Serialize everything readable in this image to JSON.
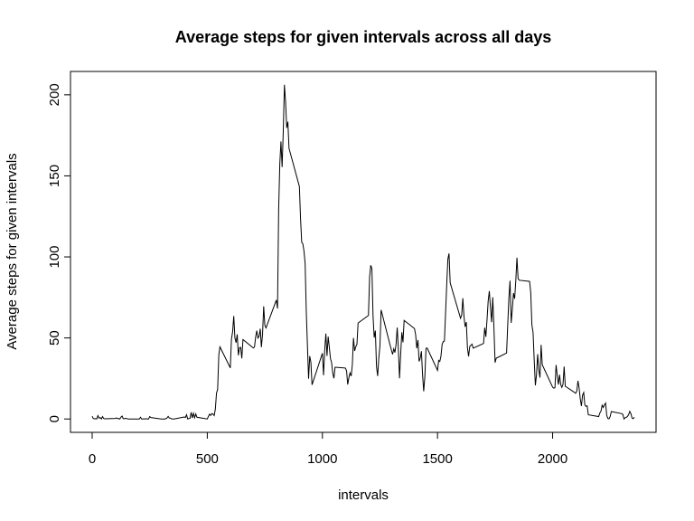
{
  "chart_data": {
    "type": "line",
    "title": "Average steps for given intervals across all days",
    "xlabel": "intervals",
    "ylabel": "Average steps for given intervals",
    "x": [
      0,
      5,
      10,
      15,
      20,
      25,
      30,
      35,
      40,
      45,
      50,
      55,
      100,
      105,
      110,
      115,
      120,
      125,
      130,
      135,
      140,
      145,
      150,
      155,
      200,
      205,
      210,
      215,
      220,
      225,
      230,
      235,
      240,
      245,
      250,
      255,
      300,
      305,
      310,
      315,
      320,
      325,
      330,
      335,
      340,
      345,
      350,
      355,
      400,
      405,
      410,
      415,
      420,
      425,
      430,
      435,
      440,
      445,
      450,
      455,
      500,
      505,
      510,
      515,
      520,
      525,
      530,
      535,
      540,
      545,
      550,
      555,
      600,
      605,
      610,
      615,
      620,
      625,
      630,
      635,
      640,
      645,
      650,
      655,
      700,
      705,
      710,
      715,
      720,
      725,
      730,
      735,
      740,
      745,
      750,
      755,
      800,
      805,
      810,
      815,
      820,
      825,
      830,
      835,
      840,
      845,
      850,
      855,
      900,
      905,
      910,
      915,
      920,
      925,
      930,
      935,
      940,
      945,
      950,
      955,
      1000,
      1005,
      1010,
      1015,
      1020,
      1025,
      1030,
      1035,
      1040,
      1045,
      1050,
      1055,
      1100,
      1105,
      1110,
      1115,
      1120,
      1125,
      1130,
      1135,
      1140,
      1145,
      1150,
      1155,
      1200,
      1205,
      1210,
      1215,
      1220,
      1225,
      1230,
      1235,
      1240,
      1245,
      1250,
      1255,
      1300,
      1305,
      1310,
      1315,
      1320,
      1325,
      1330,
      1335,
      1340,
      1345,
      1350,
      1355,
      1400,
      1405,
      1410,
      1415,
      1420,
      1425,
      1430,
      1435,
      1440,
      1445,
      1450,
      1455,
      1500,
      1505,
      1510,
      1515,
      1520,
      1525,
      1530,
      1535,
      1540,
      1545,
      1550,
      1555,
      1600,
      1605,
      1610,
      1615,
      1620,
      1625,
      1630,
      1635,
      1640,
      1645,
      1650,
      1655,
      1700,
      1705,
      1710,
      1715,
      1720,
      1725,
      1730,
      1735,
      1740,
      1745,
      1750,
      1755,
      1800,
      1805,
      1810,
      1815,
      1820,
      1825,
      1830,
      1835,
      1840,
      1845,
      1850,
      1855,
      1900,
      1905,
      1910,
      1915,
      1920,
      1925,
      1930,
      1935,
      1940,
      1945,
      1950,
      1955,
      2000,
      2005,
      2010,
      2015,
      2020,
      2025,
      2030,
      2035,
      2040,
      2045,
      2050,
      2055,
      2100,
      2105,
      2110,
      2115,
      2120,
      2125,
      2130,
      2135,
      2140,
      2145,
      2150,
      2155,
      2200,
      2205,
      2210,
      2215,
      2220,
      2225,
      2230,
      2235,
      2240,
      2245,
      2250,
      2255,
      2300,
      2305,
      2310,
      2315,
      2320,
      2325,
      2330,
      2335,
      2340,
      2345,
      2350,
      2355
    ],
    "series": [
      {
        "color": "#000000",
        "values": [
          1.7,
          0.3,
          0.1,
          0.2,
          0.1,
          2.1,
          0.5,
          0.9,
          0,
          1.5,
          0.3,
          0.1,
          0.3,
          0.7,
          0.2,
          0.3,
          0,
          1.1,
          1.8,
          0.2,
          0.2,
          0.4,
          0.3,
          0,
          0,
          0,
          1.1,
          0,
          0,
          0.1,
          0,
          0.2,
          0,
          0,
          1.5,
          0.9,
          0,
          0,
          0,
          0,
          0.2,
          0.6,
          1.6,
          0.6,
          0.5,
          0.1,
          0,
          0,
          1.2,
          0.9,
          2.6,
          0,
          0.3,
          0.4,
          4.1,
          0.7,
          3.5,
          0.8,
          3.1,
          1.1,
          0,
          1.6,
          3,
          2.2,
          3.3,
          3,
          2.1,
          6.1,
          16,
          18.3,
          39.5,
          44.5,
          31.5,
          49.3,
          53.8,
          63.5,
          50,
          47.1,
          52.2,
          39.3,
          44,
          44.2,
          37.4,
          49,
          43.8,
          44.4,
          50.5,
          54.5,
          49.9,
          51,
          55.7,
          44.3,
          52.3,
          69.5,
          57.8,
          56.2,
          73.4,
          68.2,
          129.4,
          157.5,
          171.2,
          155.4,
          177.3,
          206.2,
          195.9,
          179.6,
          183.4,
          167,
          143.5,
          124,
          109.1,
          108.1,
          103.7,
          96,
          66.2,
          45.2,
          24.8,
          38.8,
          35,
          21.1,
          40.6,
          27,
          42.4,
          52.7,
          38.9,
          50.8,
          44.3,
          37.4,
          34.7,
          28.3,
          25.1,
          31.9,
          31.4,
          29.7,
          21.3,
          25.5,
          28.4,
          26.5,
          33.4,
          50,
          42,
          44.6,
          46,
          59.2,
          63.9,
          87.7,
          94.8,
          92.8,
          63.4,
          50.2,
          54.5,
          32.4,
          26.5,
          37.7,
          45.1,
          67.3,
          42.3,
          39.9,
          43.3,
          41,
          46.2,
          56.4,
          42.8,
          25.1,
          40,
          53.5,
          47.3,
          60.8,
          55.8,
          52,
          43.6,
          48.7,
          35.5,
          37.5,
          41.8,
          27.5,
          17.1,
          26.1,
          43.6,
          43.8,
          30,
          36.1,
          35.5,
          38.8,
          46,
          47.8,
          48.1,
          65.3,
          82.9,
          98.7,
          102.1,
          84,
          62.1,
          64.1,
          74.5,
          63.2,
          56.9,
          59.8,
          43.9,
          38.6,
          44.7,
          45.5,
          46.2,
          43.7,
          46.6,
          56.3,
          50.7,
          61.2,
          72.7,
          78.9,
          68.9,
          59.7,
          75.1,
          56.5,
          34.8,
          37.5,
          40.7,
          58,
          74.7,
          85.3,
          59.3,
          67.8,
          77.7,
          74.2,
          85.3,
          99.5,
          86.6,
          85.6,
          84.9,
          77.8,
          58,
          53.4,
          36.3,
          20.7,
          27.4,
          40,
          30.2,
          25.5,
          45.7,
          33.5,
          19.6,
          19,
          19.3,
          33.3,
          26.8,
          21.2,
          27.3,
          21.3,
          19.5,
          21.3,
          32.3,
          20.2,
          15.9,
          17.2,
          23.5,
          19.2,
          12.5,
          8,
          14.7,
          16.3,
          8.7,
          7.8,
          8.1,
          2.6,
          1.5,
          3.7,
          4.8,
          8.5,
          7.1,
          8.7,
          9.8,
          2.2,
          0.3,
          0.1,
          1.6,
          4.6,
          3.3,
          2.8,
          0,
          0.8,
          1,
          1.6,
          2.6,
          4.7,
          3.3,
          0.6,
          0.2,
          1.1
        ]
      }
    ],
    "xlim": [
      -94.2,
      2449.2
    ],
    "xticks": [
      0,
      500,
      1000,
      1500,
      2000
    ],
    "ylim": [
      -8.25,
      214.42
    ],
    "yticks": [
      0,
      50,
      100,
      150,
      200
    ]
  }
}
